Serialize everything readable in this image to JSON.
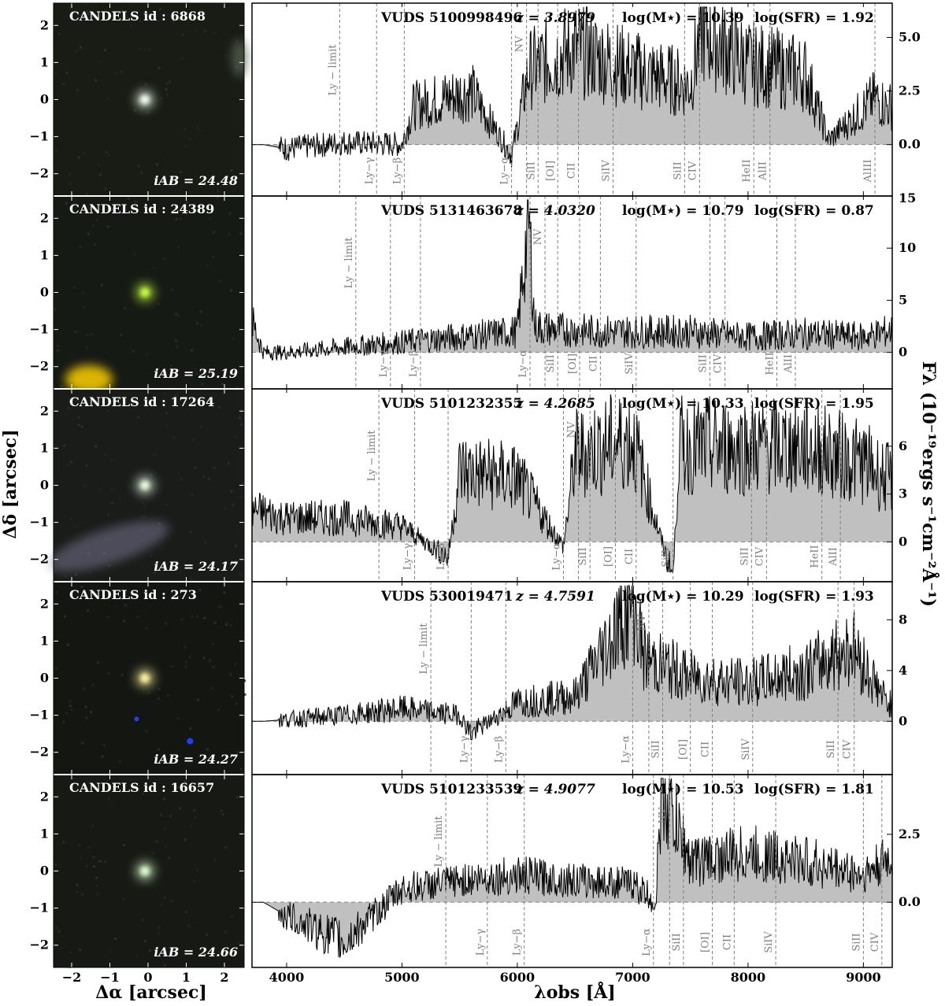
{
  "axes": {
    "x_label": "λobs [Å]",
    "x_ticks": [
      "4000",
      "5000",
      "6000",
      "7000",
      "8000",
      "9000"
    ],
    "y_label": "Fλ (10⁻¹⁹ergs s⁻¹cm⁻²Å⁻¹)",
    "img_x_label": "Δα [arcsec]",
    "img_y_label": "Δδ [arcsec]",
    "img_x_ticks": [
      "−2",
      "−1",
      "0",
      "1",
      "2"
    ],
    "img_y_ticks": [
      "2",
      "1",
      "0",
      "−1",
      "−2"
    ]
  },
  "panels": [
    {
      "candels": "CANDELS id :  6868",
      "iab": "iAB = 24.48",
      "vuds": "VUDS 5100998496",
      "z": "z = 3.8979",
      "mass": "log(M⋆) = 10.39",
      "sfr": "log(SFR) = 1.92",
      "y_ticks": [
        "5.0",
        "2.5",
        "0.0"
      ],
      "extra_tick": "15",
      "ymin": -2.4,
      "ymax": 6.6,
      "img_bg": "#181c14",
      "obj_color": "#f2fff0",
      "blob_color": null,
      "lines": [
        {
          "label": "Ly − limit",
          "x": 4460,
          "pos": "top"
        },
        {
          "label": "Ly−γ",
          "x": 4780,
          "pos": "bottom"
        },
        {
          "label": "Ly−β",
          "x": 5020,
          "pos": "bottom"
        },
        {
          "label": "Ly−α",
          "x": 5950,
          "pos": "bottom"
        },
        {
          "label": "NV",
          "x": 6080,
          "pos": "top"
        },
        {
          "label": "SiII",
          "x": 6180,
          "pos": "bottom"
        },
        {
          "label": "[OI]",
          "x": 6350,
          "pos": "bottom"
        },
        {
          "label": "CII",
          "x": 6530,
          "pos": "bottom"
        },
        {
          "label": "SiIV",
          "x": 6830,
          "pos": "bottom"
        },
        {
          "label": "SiII",
          "x": 7450,
          "pos": "bottom"
        },
        {
          "label": "CIV",
          "x": 7580,
          "pos": "bottom"
        },
        {
          "label": "HeII",
          "x": 8050,
          "pos": "bottom"
        },
        {
          "label": "AlII",
          "x": 8190,
          "pos": "bottom"
        },
        {
          "label": "AlIII",
          "x": 9100,
          "pos": "bottom"
        }
      ]
    },
    {
      "candels": "CANDELS id :  24389",
      "iab": "iAB = 25.19",
      "vuds": "VUDS 5131463678",
      "z": "z = 4.0320",
      "mass": "log(M⋆) = 10.79",
      "sfr": "log(SFR) = 0.87",
      "y_ticks": [
        "10",
        "5",
        "0"
      ],
      "extra_tick": null,
      "ymin": -3.5,
      "ymax": 15,
      "img_bg": "#151a14",
      "obj_color": "#c8ff40",
      "blob_color": "#ffd000",
      "lines": [
        {
          "label": "Ly − limit",
          "x": 4600,
          "pos": "top"
        },
        {
          "label": "Ly−γ",
          "x": 4900,
          "pos": "bottom"
        },
        {
          "label": "Ly−β",
          "x": 5160,
          "pos": "bottom"
        },
        {
          "label": "Ly−α",
          "x": 6110,
          "pos": "bottom"
        },
        {
          "label": "NV",
          "x": 6240,
          "pos": "top"
        },
        {
          "label": "SiII",
          "x": 6350,
          "pos": "bottom"
        },
        {
          "label": "[OI]",
          "x": 6540,
          "pos": "bottom"
        },
        {
          "label": "CII",
          "x": 6720,
          "pos": "bottom"
        },
        {
          "label": "SiIV",
          "x": 7030,
          "pos": "bottom"
        },
        {
          "label": "SiII",
          "x": 7670,
          "pos": "bottom"
        },
        {
          "label": "CIV",
          "x": 7800,
          "pos": "bottom"
        },
        {
          "label": "HeII",
          "x": 8250,
          "pos": "bottom"
        },
        {
          "label": "AlII",
          "x": 8410,
          "pos": "bottom"
        }
      ]
    },
    {
      "candels": "CANDELS id :  17264",
      "iab": "iAB = 24.17",
      "vuds": "VUDS 5101232355",
      "z": "z = 4.2685",
      "mass": "log(M⋆) = 10.33",
      "sfr": "log(SFR) = 1.95",
      "y_ticks": [
        "6",
        "3",
        "0"
      ],
      "extra_tick": null,
      "ymin": -2.5,
      "ymax": 9.6,
      "img_bg": "#1a1c1a",
      "obj_color": "#e8ffe0",
      "blob_color": "#8a8aa8",
      "lines": [
        {
          "label": "Ly − limit",
          "x": 4800,
          "pos": "top"
        },
        {
          "label": "Ly−γ",
          "x": 5110,
          "pos": "bottom"
        },
        {
          "label": "Ly−β",
          "x": 5400,
          "pos": "bottom"
        },
        {
          "label": "Ly−α",
          "x": 6400,
          "pos": "bottom"
        },
        {
          "label": "NV",
          "x": 6530,
          "pos": "top"
        },
        {
          "label": "SiII",
          "x": 6630,
          "pos": "bottom"
        },
        {
          "label": "[OI]",
          "x": 6850,
          "pos": "bottom"
        },
        {
          "label": "CII",
          "x": 7030,
          "pos": "bottom"
        },
        {
          "label": "SiIV",
          "x": 7350,
          "pos": "bottom"
        },
        {
          "label": "SiII",
          "x": 8030,
          "pos": "bottom"
        },
        {
          "label": "CIV",
          "x": 8160,
          "pos": "bottom"
        },
        {
          "label": "HeII",
          "x": 8640,
          "pos": "bottom"
        },
        {
          "label": "AlII",
          "x": 8800,
          "pos": "bottom"
        }
      ]
    },
    {
      "candels": "CANDELS id :  273",
      "iab": "iAB = 24.27",
      "vuds": "VUDS 530019471",
      "z": "z = 4.7591",
      "mass": "log(M⋆) = 10.29",
      "sfr": "log(SFR) = 1.93",
      "y_ticks": [
        "8",
        "4",
        "0"
      ],
      "extra_tick": null,
      "ymin": -4.2,
      "ymax": 11.0,
      "img_bg": "#141612",
      "obj_color": "#fff4a0",
      "blob_color": "#2040ff",
      "lines": [
        {
          "label": "Ly − limit",
          "x": 5250,
          "pos": "top"
        },
        {
          "label": "Ly−γ",
          "x": 5600,
          "pos": "bottom"
        },
        {
          "label": "Ly−β",
          "x": 5900,
          "pos": "bottom"
        },
        {
          "label": "Ly−α",
          "x": 7000,
          "pos": "bottom"
        },
        {
          "label": "NV",
          "x": 7140,
          "pos": "top"
        },
        {
          "label": "SiII",
          "x": 7260,
          "pos": "bottom"
        },
        {
          "label": "[OI]",
          "x": 7500,
          "pos": "bottom"
        },
        {
          "label": "CII",
          "x": 7690,
          "pos": "bottom"
        },
        {
          "label": "SiIV",
          "x": 8040,
          "pos": "bottom"
        },
        {
          "label": "SiII",
          "x": 8780,
          "pos": "bottom"
        },
        {
          "label": "CIV",
          "x": 8920,
          "pos": "bottom"
        }
      ]
    },
    {
      "candels": "CANDELS id :  16657",
      "iab": "iAB = 24.66",
      "vuds": "VUDS 5101233539",
      "z": "z = 4.9077",
      "mass": "log(M⋆) = 10.53",
      "sfr": "log(SFR) = 1.81",
      "y_ticks": [
        "2.5",
        "0.0"
      ],
      "extra_tick": null,
      "ymin": -2.4,
      "ymax": 4.7,
      "img_bg": "#171a14",
      "obj_color": "#dfffd0",
      "blob_color": null,
      "lines": [
        {
          "label": "Ly − limit",
          "x": 5380,
          "pos": "top"
        },
        {
          "label": "Ly−γ",
          "x": 5740,
          "pos": "bottom"
        },
        {
          "label": "Ly−β",
          "x": 6060,
          "pos": "bottom"
        },
        {
          "label": "Ly−α",
          "x": 7180,
          "pos": "bottom"
        },
        {
          "label": "NV",
          "x": 7320,
          "pos": "top"
        },
        {
          "label": "SiII",
          "x": 7440,
          "pos": "bottom"
        },
        {
          "label": "[OI]",
          "x": 7690,
          "pos": "bottom"
        },
        {
          "label": "CII",
          "x": 7880,
          "pos": "bottom"
        },
        {
          "label": "SiIV",
          "x": 8240,
          "pos": "bottom"
        },
        {
          "label": "SiII",
          "x": 9000,
          "pos": "bottom"
        },
        {
          "label": "CIV",
          "x": 9160,
          "pos": "bottom"
        }
      ]
    }
  ],
  "chart_data": {
    "type": "area",
    "x_range": [
      3700,
      9250
    ],
    "series": [
      {
        "name": "VUDS 5100998496",
        "x": [
          3800,
          4000,
          4500,
          5000,
          5100,
          5600,
          5950,
          6100,
          6500,
          7000,
          7500,
          7600,
          8000,
          8500,
          8700,
          9100,
          9200
        ],
        "y": [
          0.0,
          -0.2,
          0.1,
          0.0,
          1.8,
          2.5,
          -0.5,
          3.5,
          4.5,
          3.5,
          2.8,
          5.5,
          3.8,
          3.3,
          0.2,
          2.2,
          1.8
        ]
      },
      {
        "name": "VUDS 5131463678",
        "x": [
          3700,
          3800,
          4000,
          4500,
          5000,
          5500,
          6000,
          6100,
          6150,
          6300,
          6800,
          7500,
          8000,
          8500,
          9000,
          9200
        ],
        "y": [
          3.0,
          0.0,
          0.0,
          0.5,
          1.0,
          1.5,
          2.0,
          13.0,
          2.5,
          2.2,
          2.0,
          2.0,
          1.5,
          1.8,
          1.5,
          2.0
        ]
      },
      {
        "name": "VUDS 5101232355",
        "x": [
          3700,
          4000,
          4500,
          5000,
          5400,
          5500,
          6000,
          6400,
          6500,
          7000,
          7350,
          7400,
          8000,
          8500,
          9000,
          9200
        ],
        "y": [
          2.0,
          1.5,
          1.5,
          1.0,
          -1.0,
          4.5,
          4.0,
          -0.3,
          5.5,
          6.5,
          -2.5,
          6.0,
          6.0,
          6.0,
          5.0,
          4.0
        ]
      },
      {
        "name": "VUDS 530019471",
        "x": [
          3800,
          4500,
          5000,
          5500,
          5600,
          6000,
          6500,
          7000,
          7100,
          7500,
          8000,
          8500,
          8900,
          9200
        ],
        "y": [
          0.0,
          0.5,
          1.0,
          0.5,
          -1.0,
          1.5,
          2.0,
          9.5,
          5.0,
          3.5,
          3.0,
          4.0,
          6.0,
          1.5
        ]
      },
      {
        "name": "VUDS 5101233539",
        "x": [
          3800,
          4000,
          4500,
          5000,
          5500,
          6000,
          6500,
          7000,
          7200,
          7250,
          7500,
          8000,
          8500,
          9000,
          9200
        ],
        "y": [
          0.0,
          -0.5,
          -1.5,
          0.5,
          0.8,
          1.0,
          0.8,
          0.7,
          0.0,
          4.2,
          1.5,
          1.8,
          1.5,
          1.0,
          1.5
        ]
      }
    ]
  }
}
